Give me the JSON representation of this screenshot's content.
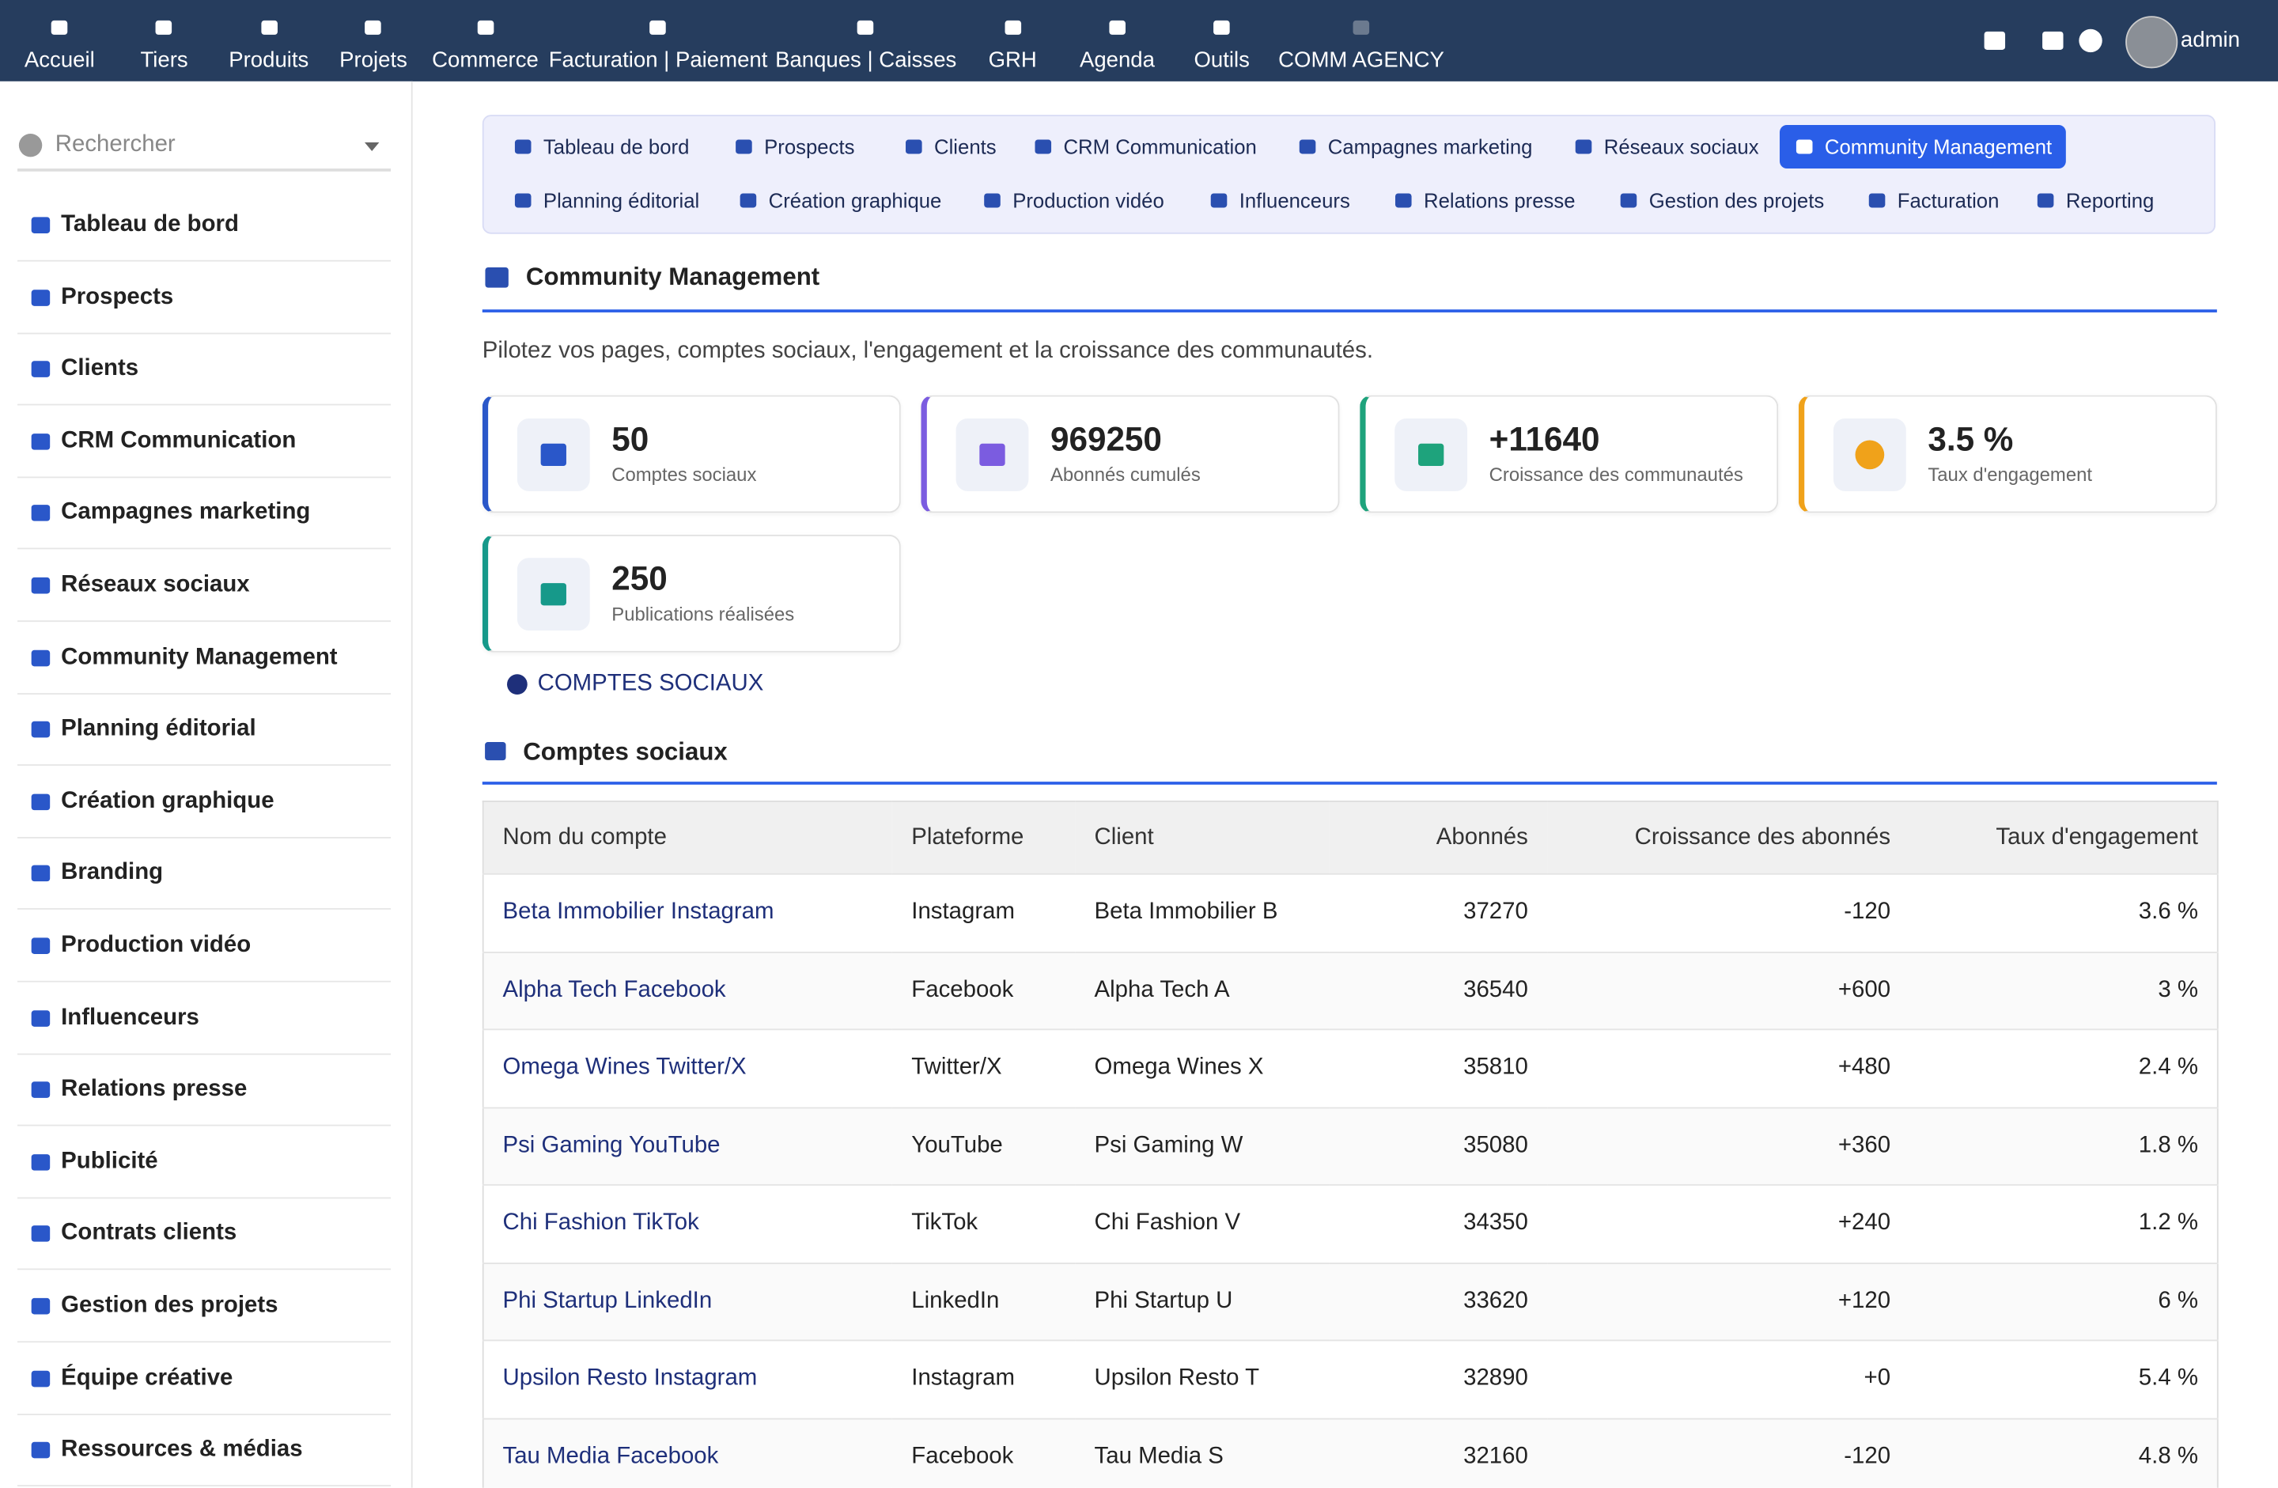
{
  "topnav": {
    "items": [
      "Accueil",
      "Tiers",
      "Produits",
      "Projets",
      "Commerce",
      "Facturation | Paiement",
      "Banques | Caisses",
      "GRH",
      "Agenda",
      "Outils",
      "COMM AGENCY"
    ],
    "user": "admin"
  },
  "sidebar": {
    "search": "Rechercher",
    "items": [
      "Tableau de bord",
      "Prospects",
      "Clients",
      "CRM Communication",
      "Campagnes marketing",
      "Réseaux sociaux",
      "Community Management",
      "Planning éditorial",
      "Création graphique",
      "Branding",
      "Production vidéo",
      "Influenceurs",
      "Relations presse",
      "Publicité",
      "Contrats clients",
      "Gestion des projets",
      "Équipe créative",
      "Ressources & médias"
    ]
  },
  "tabs": {
    "items": [
      "Tableau de bord",
      "Prospects",
      "Clients",
      "CRM Communication",
      "Campagnes marketing",
      "Réseaux sociaux",
      "Community Management",
      "Planning éditorial",
      "Création graphique",
      "Production vidéo",
      "Influenceurs",
      "Relations presse",
      "Gestion des projets",
      "Facturation",
      "Reporting"
    ],
    "active": "Community Management"
  },
  "section": {
    "title": "Community Management",
    "description": "Pilotez vos pages, comptes sociaux, l'engagement et la croissance des communautés."
  },
  "stats": [
    {
      "value": "50",
      "label": "Comptes sociaux"
    },
    {
      "value": "969250",
      "label": "Abonnés cumulés"
    },
    {
      "value": "+11640",
      "label": "Croissance des communautés"
    },
    {
      "value": "3.5 %",
      "label": "Taux d'engagement"
    },
    {
      "value": "250",
      "label": "Publications réalisées"
    }
  ],
  "button": "COMPTES SOCIAUX",
  "table": {
    "title": "Comptes sociaux",
    "columns": [
      "Nom du compte",
      "Plateforme",
      "Client",
      "Abonnés",
      "Croissance des abonnés",
      "Taux d'engagement"
    ],
    "rows": [
      [
        "Beta Immobilier Instagram",
        "Instagram",
        "Beta Immobilier B",
        "37270",
        "-120",
        "3.6 %"
      ],
      [
        "Alpha Tech Facebook",
        "Facebook",
        "Alpha Tech A",
        "36540",
        "+600",
        "3 %"
      ],
      [
        "Omega Wines Twitter/X",
        "Twitter/X",
        "Omega Wines X",
        "35810",
        "+480",
        "2.4 %"
      ],
      [
        "Psi Gaming YouTube",
        "YouTube",
        "Psi Gaming W",
        "35080",
        "+360",
        "1.8 %"
      ],
      [
        "Chi Fashion TikTok",
        "TikTok",
        "Chi Fashion V",
        "34350",
        "+240",
        "1.2 %"
      ],
      [
        "Phi Startup LinkedIn",
        "LinkedIn",
        "Phi Startup U",
        "33620",
        "+120",
        "6 %"
      ],
      [
        "Upsilon Resto Instagram",
        "Instagram",
        "Upsilon Resto T",
        "32890",
        "+0",
        "5.4 %"
      ],
      [
        "Tau Media Facebook",
        "Facebook",
        "Tau Media S",
        "32160",
        "-120",
        "4.8 %"
      ]
    ]
  }
}
